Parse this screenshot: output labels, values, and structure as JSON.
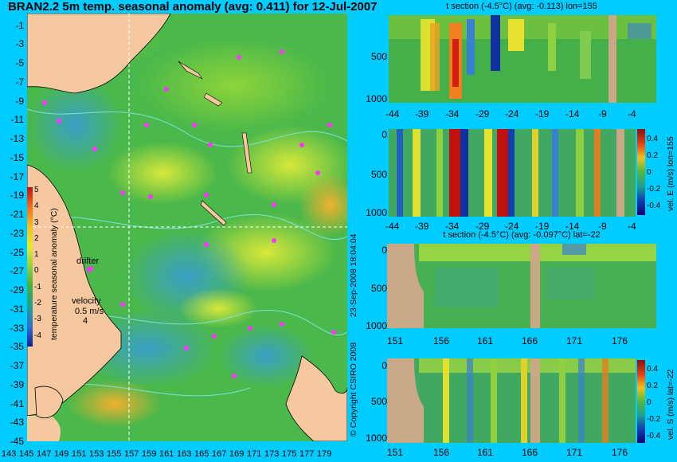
{
  "map": {
    "title": "BRAN2.2 5m temp. seasonal anomaly (avg: 0.411) for 12-Jul-2007",
    "lat_ticks": [
      "-1",
      "-3",
      "-5",
      "-7",
      "-9",
      "-11",
      "-13",
      "-15",
      "-17",
      "-19",
      "-21",
      "-23",
      "-25",
      "-27",
      "-29",
      "-31",
      "-33",
      "-35",
      "-37",
      "-39",
      "-41",
      "-43",
      "-45"
    ],
    "lon_ticks": [
      "143",
      "145",
      "147",
      "149",
      "151",
      "153",
      "155",
      "157",
      "159",
      "161",
      "163",
      "165",
      "167",
      "169",
      "171",
      "173",
      "175",
      "177",
      "179"
    ],
    "colorbar_label": "temperature seasonal anomaly (°C)",
    "colorbar_ticks": [
      "5",
      "4",
      "3",
      "2",
      "1",
      "0",
      "-1",
      "-2",
      "-3",
      "-4"
    ],
    "drifter_label": "drifter",
    "velocity_label": "velocity",
    "velocity_scale": "0.5 m/s",
    "velocity_scale2": "4",
    "date_stamp": "23-Sep-2008 18:04:04",
    "copyright": "© Copyright CSIRO 2008"
  },
  "panels": [
    {
      "title": "t section (-4.5°C) (avg: -0.113) lon=155",
      "x_ticks": [
        "-44",
        "-39",
        "-34",
        "-29",
        "-24",
        "-19",
        "-14",
        "-9",
        "-4"
      ],
      "y_ticks": [
        "500",
        "1000"
      ]
    },
    {
      "title": "",
      "x_ticks": [
        "-44",
        "-39",
        "-34",
        "-29",
        "-24",
        "-19",
        "-14",
        "-9",
        "-4"
      ],
      "y_ticks": [
        "0",
        "500",
        "1000"
      ],
      "side_label": "vel. E (m/s) lon=155",
      "cbar_ticks": [
        "0.4",
        "0.2",
        "0",
        "-0.2",
        "-0.4"
      ]
    },
    {
      "title": "t section (-4.5°C) (avg: -0.097°C) lat=-22",
      "x_ticks": [
        "151",
        "156",
        "161",
        "166",
        "171",
        "176"
      ],
      "y_ticks": [
        "0",
        "500",
        "1000"
      ]
    },
    {
      "title": "",
      "x_ticks": [
        "151",
        "156",
        "161",
        "166",
        "171",
        "176"
      ],
      "y_ticks": [
        "0",
        "500",
        "1000"
      ],
      "side_label": "vel. S (m/s) lat=-22",
      "cbar_ticks": [
        "0.4",
        "0.2",
        "0",
        "-0.2",
        "-0.4"
      ]
    }
  ],
  "colors": {
    "background": "#00ccff",
    "ocean_mid": "#45b545",
    "land": "#f6c8a0",
    "section_land": "#c8a886",
    "drifter": "#ff33ff"
  }
}
